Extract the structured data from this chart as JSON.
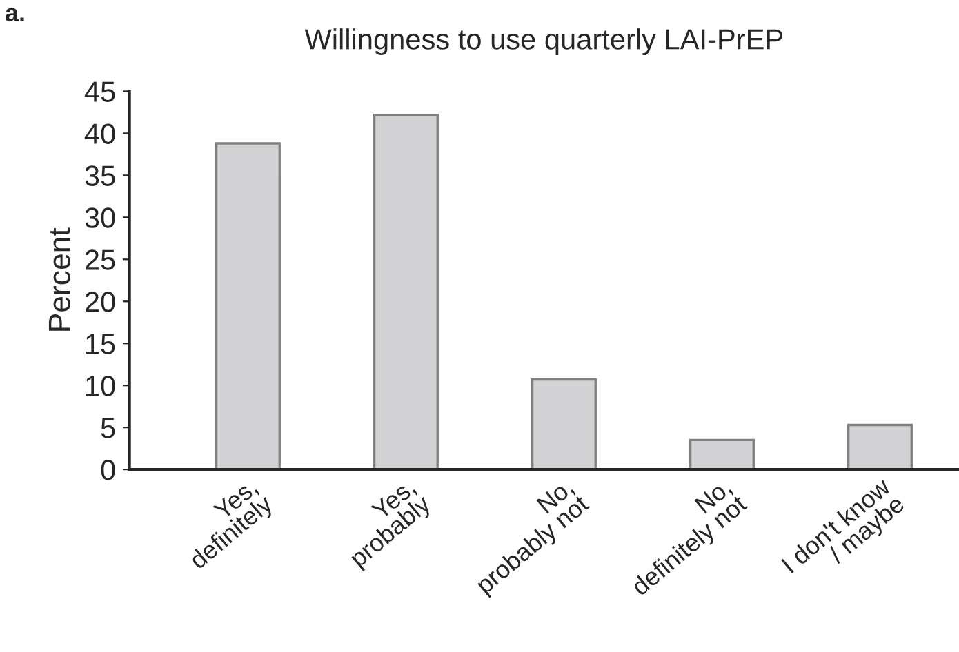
{
  "chart_data": {
    "type": "bar",
    "title": "Willingness to use quarterly LAI-PrEP",
    "ylabel": "Percent",
    "annotations": [
      "a."
    ],
    "categories": [
      "Yes,\ndefinitely",
      "Yes,\nprobably",
      "No,\nprobably not",
      "No,\ndefinitely not",
      "I don't know\n/ maybe"
    ],
    "values": [
      38.8,
      42.2,
      10.7,
      3.5,
      5.3
    ],
    "color": "#d3d3d5",
    "ylim": [
      0,
      45
    ],
    "yticks": [
      0,
      5,
      10,
      15,
      20,
      25,
      30,
      35,
      40,
      45
    ],
    "grid": false,
    "legend": false
  }
}
